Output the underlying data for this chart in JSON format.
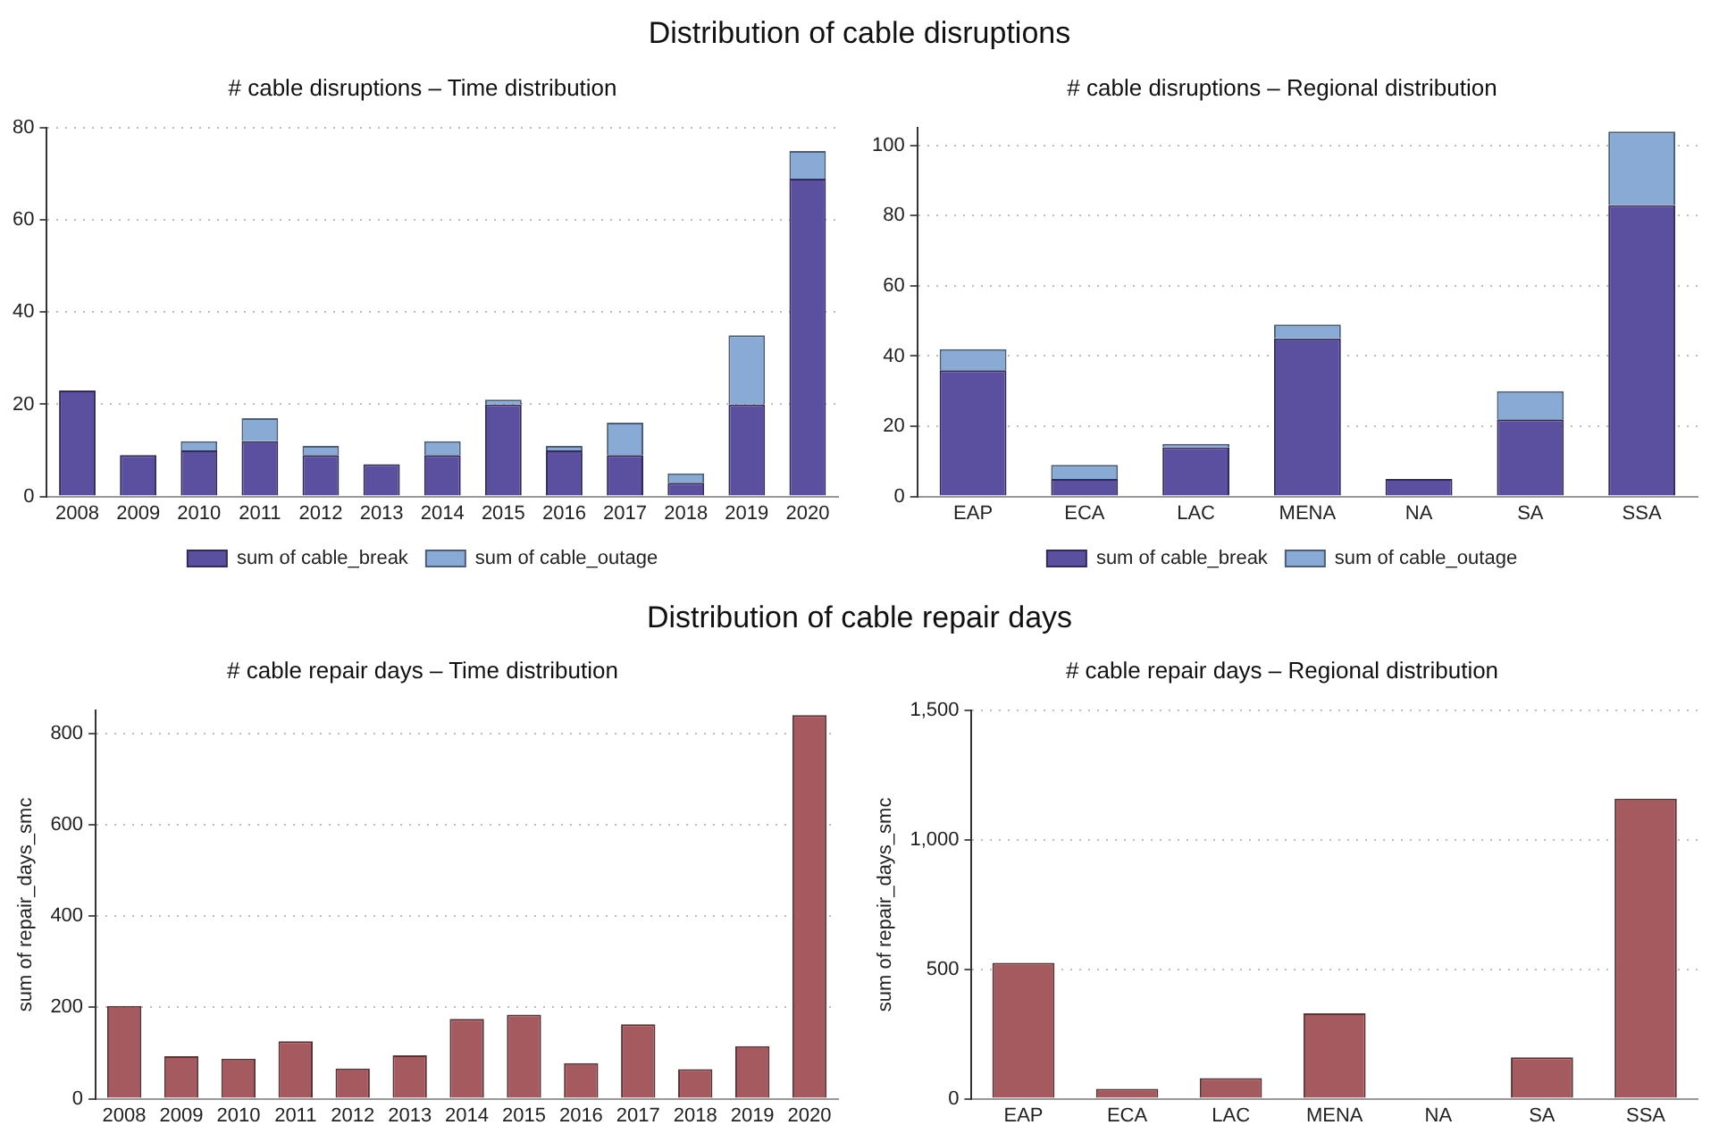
{
  "chart_data": [
    {
      "type": "bar",
      "title": "# cable disruptions – Time distribution",
      "annotations": [
        "Distribution of cable disruptions"
      ],
      "categories": [
        "2008",
        "2009",
        "2010",
        "2011",
        "2012",
        "2013",
        "2014",
        "2015",
        "2016",
        "2017",
        "2018",
        "2019",
        "2020"
      ],
      "series": [
        {
          "name": "sum of cable_break",
          "color": "#5b4f9f",
          "values": [
            23,
            9,
            10,
            12,
            9,
            7,
            9,
            20,
            10,
            9,
            3,
            20,
            69
          ]
        },
        {
          "name": "sum of cable_outage",
          "color": "#88aad4",
          "values": [
            0,
            0,
            2,
            5,
            2,
            0,
            3,
            1,
            1,
            7,
            2,
            15,
            6
          ]
        }
      ],
      "stacked": true,
      "ylim": [
        0,
        80
      ],
      "yticks": [
        0,
        20,
        40,
        60,
        80
      ],
      "grid": "y",
      "legend": "bottom"
    },
    {
      "type": "bar",
      "title": "# cable disruptions – Regional distribution",
      "categories": [
        "EAP",
        "ECA",
        "LAC",
        "MENA",
        "NA",
        "SA",
        "SSA"
      ],
      "series": [
        {
          "name": "sum of cable_break",
          "color": "#5b4f9f",
          "values": [
            36,
            5,
            14,
            45,
            5,
            22,
            83
          ]
        },
        {
          "name": "sum of cable_outage",
          "color": "#88aad4",
          "values": [
            6,
            4,
            1,
            4,
            0,
            8,
            21
          ]
        }
      ],
      "stacked": true,
      "ylim": [
        0,
        105
      ],
      "yticks": [
        0,
        20,
        40,
        60,
        80,
        100
      ],
      "grid": "y",
      "legend": "bottom"
    },
    {
      "type": "bar",
      "title": "# cable repair days – Time distribution",
      "annotations": [
        "Distribution of cable repair days"
      ],
      "ylabel": "sum of repair_days_smc",
      "categories": [
        "2008",
        "2009",
        "2010",
        "2011",
        "2012",
        "2013",
        "2014",
        "2015",
        "2016",
        "2017",
        "2018",
        "2019",
        "2020"
      ],
      "series": [
        {
          "color": "#a45a5f",
          "values": [
            203,
            93,
            88,
            126,
            66,
            95,
            175,
            184,
            78,
            163,
            65,
            115,
            840
          ]
        }
      ],
      "ylim": [
        0,
        850
      ],
      "yticks": [
        0,
        200,
        400,
        600,
        800
      ],
      "grid": "y"
    },
    {
      "type": "bar",
      "title": "# cable repair days – Regional distribution",
      "ylabel": "sum of repair_days_smc",
      "categories": [
        "EAP",
        "ECA",
        "LAC",
        "MENA",
        "NA",
        "SA",
        "SSA"
      ],
      "series": [
        {
          "color": "#a45a5f",
          "values": [
            525,
            38,
            80,
            330,
            0,
            160,
            1160
          ]
        }
      ],
      "ylim": [
        0,
        1500
      ],
      "yticks": [
        0,
        {
          "value": 500,
          "label": "500"
        },
        {
          "value": 1000,
          "label": "1,000"
        },
        {
          "value": 1500,
          "label": "1,500"
        }
      ],
      "grid": "y"
    }
  ]
}
